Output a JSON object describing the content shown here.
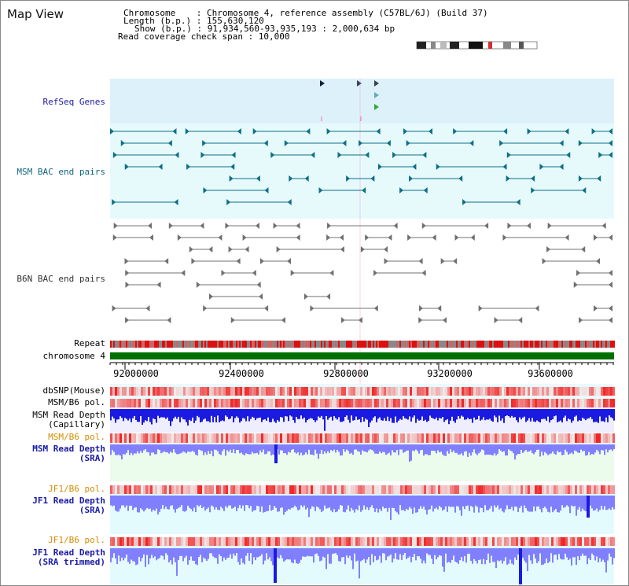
{
  "map_title": "Map View",
  "info": {
    "chromosome_line": "Chromosome    : Chromosome 4, reference assembly (C57BL/6J) (Build 37)",
    "length_line": "Length (b.p.) : 155,630,120",
    "show_line": "Show (b.p.) : 91,934,560-93,935,193 : 2,000,634 bp",
    "coverage_line": "Read coverage check span : 10,000"
  },
  "tracks": {
    "refseq": "RefSeq Genes",
    "msm_bac": "MSM BAC end pairs",
    "b6n_bac": "B6N BAC end pairs",
    "repeat": "Repeat",
    "chromosome": "chromosome 4",
    "dbsnp": "dbSNP(Mouse)",
    "msm_b6_pol": "MSM/B6 pol.",
    "msm_read_depth_cap_1": "MSM Read Depth",
    "msm_read_depth_cap_2": "(Capillary)",
    "msm_b6_pol_2": "MSM/B6 pol.",
    "msm_read_depth_sra_1": "MSM Read Depth",
    "msm_read_depth_sra_2": "(SRA)",
    "jf1_b6_pol": "JF1/B6 pol.",
    "jf1_read_depth_1": "JF1 Read Depth",
    "jf1_read_depth_2": "(SRA)",
    "jf1_b6_pol_2": "JF1/B6 pol.",
    "jf1_read_depth_trim_1": "JF1 Read Depth",
    "jf1_read_depth_trim_2": "(SRA trimmed)"
  },
  "axis": {
    "ticks": [
      "92000000",
      "92400000",
      "92800000",
      "93200000",
      "93600000"
    ]
  },
  "colors": {
    "refseq_bg": "#ddf1fa",
    "bac_bg": "#e6fafc",
    "msm_feature": "#0f6f87",
    "b6n_feature": "#707070",
    "chromosome_bar": "#007000",
    "depth_blue": "#1a1ae0",
    "depth_light": "#8080ff",
    "pol_red": "#ee2020"
  }
}
